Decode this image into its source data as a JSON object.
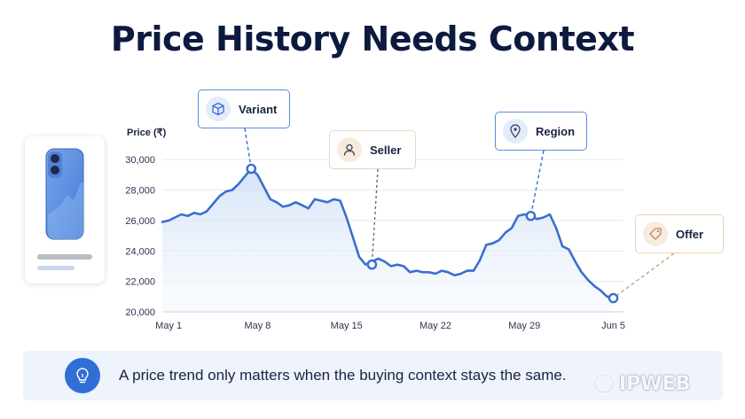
{
  "page_title": "Price History Needs Context",
  "chart_data": {
    "type": "line",
    "title": "Price History Needs Context",
    "ylabel": "Price (₹)",
    "xlabel": "",
    "ylim": [
      20000,
      31000
    ],
    "yticks": [
      20000,
      22000,
      24000,
      26000,
      28000,
      30000
    ],
    "ytick_labels": [
      "20,000",
      "22,000",
      "24,000",
      "26,000",
      "28,000",
      "30,000"
    ],
    "xtick_labels": [
      "May 1",
      "May 8",
      "May 15",
      "May 22",
      "May 29",
      "Jun 5"
    ],
    "xtick_positions": [
      1,
      8,
      15,
      22,
      29,
      36
    ],
    "x_range": [
      0.5,
      36.8
    ],
    "grid": true,
    "series": [
      {
        "name": "",
        "color": "#3a6fcf",
        "x": [
          0.5,
          1,
          1.5,
          2,
          2.5,
          3,
          3.5,
          4,
          4.5,
          5,
          5.5,
          6,
          6.5,
          7,
          7.5,
          8,
          8.5,
          9,
          9.5,
          10,
          10.5,
          11,
          11.5,
          12,
          12.5,
          13,
          13.5,
          14,
          14.5,
          15,
          15.5,
          16,
          16.5,
          17,
          17.5,
          18,
          18.5,
          19,
          19.5,
          20,
          20.5,
          21,
          21.5,
          22,
          22.5,
          23,
          23.5,
          24,
          24.5,
          25,
          25.5,
          26,
          26.5,
          27,
          27.5,
          28,
          28.5,
          29,
          29.5,
          30,
          30.5,
          31,
          31.5,
          32,
          32.5,
          33,
          33.5,
          34,
          34.5,
          35,
          35.5,
          36
        ],
        "y": [
          25900,
          26000,
          26200,
          26400,
          26300,
          26500,
          26400,
          26600,
          27100,
          27600,
          27900,
          28000,
          28400,
          28900,
          29400,
          29000,
          28200,
          27400,
          27200,
          26900,
          27000,
          27200,
          27000,
          26800,
          27400,
          27300,
          27200,
          27400,
          27300,
          26200,
          24900,
          23600,
          23100,
          23300,
          23500,
          23300,
          23000,
          23100,
          23000,
          22600,
          22700,
          22600,
          22600,
          22500,
          22700,
          22600,
          22400,
          22500,
          22700,
          22700,
          23400,
          24400,
          24500,
          24700,
          25200,
          25500,
          26300,
          26400,
          26300,
          26100,
          26200,
          26400,
          25500,
          24300,
          24100,
          23300,
          22600,
          22100,
          21700,
          21400,
          21000,
          20900
        ]
      }
    ],
    "annotations": [
      {
        "label": "Variant",
        "x": 7.5,
        "y": 29400,
        "style": "blue"
      },
      {
        "label": "Seller",
        "x": 17,
        "y": 23100,
        "style": "peach"
      },
      {
        "label": "Region",
        "x": 29.5,
        "y": 26300,
        "style": "blue"
      },
      {
        "label": "Offer",
        "x": 36,
        "y": 20900,
        "style": "peach"
      }
    ]
  },
  "tags": {
    "variant": {
      "label": "Variant",
      "icon": "cube-icon"
    },
    "seller": {
      "label": "Seller",
      "icon": "person-icon"
    },
    "region": {
      "label": "Region",
      "icon": "location-pin-icon"
    },
    "offer": {
      "label": "Offer",
      "icon": "price-tag-icon"
    }
  },
  "product": {
    "icon": "smartphone-icon"
  },
  "banner": {
    "text": "A price trend only matters when the buying context stays the same.",
    "icon": "lightbulb-icon"
  },
  "watermark": {
    "text": "IPWEB"
  },
  "colors": {
    "accent": "#3a6fcf",
    "title": "#0d1a3f",
    "banner_bg": "#eef3fc"
  }
}
